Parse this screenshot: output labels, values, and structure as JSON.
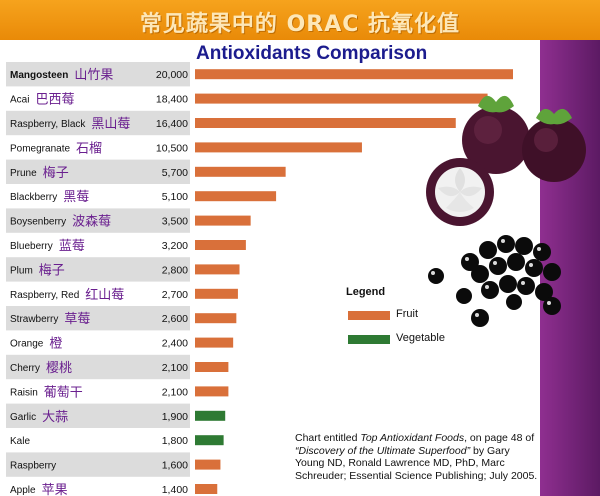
{
  "banner": {
    "title": "常见蔬果中的 ORAC 抗氧化值"
  },
  "colors": {
    "fruit": "#d9703a",
    "vegetable": "#2e7a33",
    "row_alt": "#dcdcdc",
    "banner": "#f29b17",
    "panel": "#7a2582"
  },
  "legend": {
    "title": "Legend",
    "items": [
      {
        "label": "Fruit",
        "color": "#d9703a"
      },
      {
        "label": "Vegetable",
        "color": "#2e7a33"
      }
    ]
  },
  "source": {
    "line1_prefix": "Chart entitled ",
    "line1_title": "Top Antioxidant Foods",
    "line1_suffix": ", on page 48 of",
    "line2_title": "“Discovery of the Ultimate Superfood”",
    "line2_suffix": " by Gary",
    "line3": "Young ND, Ronald Lawrence MD, PhD, Marc",
    "line4": "Schreuder; Essential Science Publishing; July 2005."
  },
  "chart_data": {
    "type": "bar",
    "orientation": "horizontal",
    "title": "Antioxidants Comparison",
    "categories": [
      "Mangosteen",
      "Acai",
      "Raspberry, Black",
      "Pomegranate",
      "Prune",
      "Blackberry",
      "Boysenberry",
      "Blueberry",
      "Plum",
      "Raspberry, Red",
      "Strawberry",
      "Orange",
      "Cherry",
      "Raisin",
      "Garlic",
      "Kale",
      "Raspberry",
      "Apple"
    ],
    "chinese_names": [
      "山竹果",
      "巴西莓",
      "黑山莓",
      "石榴",
      "梅子",
      "黑莓",
      "波森莓",
      "蓝莓",
      "梅子",
      "红山莓",
      "草莓",
      "橙",
      "樱桃",
      "葡萄干",
      "大蒜",
      "",
      "",
      "苹果"
    ],
    "value_labels": [
      "20,000",
      "18,400",
      "16,400",
      "10,500",
      "5,700",
      "5,100",
      "3,500",
      "3,200",
      "2,800",
      "2,700",
      "2,600",
      "2,400",
      "2,100",
      "2,100",
      "1,900",
      "1,800",
      "1,600",
      "1,400"
    ],
    "values": [
      20000,
      18400,
      16400,
      10500,
      5700,
      5100,
      3500,
      3200,
      2800,
      2700,
      2600,
      2400,
      2100,
      2100,
      1900,
      1800,
      1600,
      1400
    ],
    "groups": [
      "Fruit",
      "Fruit",
      "Fruit",
      "Fruit",
      "Fruit",
      "Fruit",
      "Fruit",
      "Fruit",
      "Fruit",
      "Fruit",
      "Fruit",
      "Fruit",
      "Fruit",
      "Fruit",
      "Vegetable",
      "Vegetable",
      "Fruit",
      "Fruit"
    ],
    "xlim": [
      0,
      20000
    ]
  }
}
